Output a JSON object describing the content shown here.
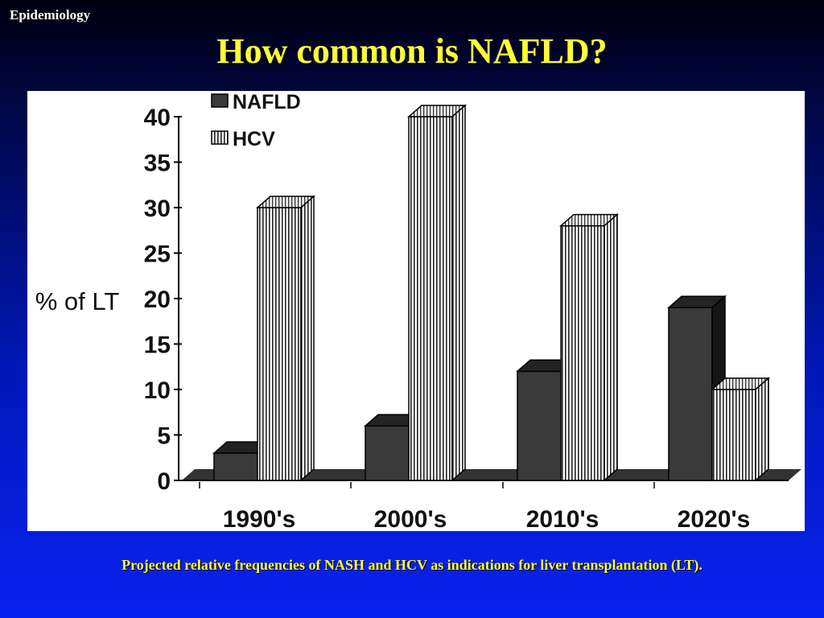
{
  "header": {
    "section": "Epidemiology",
    "title": "How common is NAFLD?"
  },
  "caption": "Projected relative frequencies of NASH and HCV as indications for liver transplantation (LT).",
  "colors": {
    "title": "#ffff33",
    "nafld": "#3a3a3a",
    "hcv": "#ffffff"
  },
  "chart_data": {
    "type": "bar",
    "title": "",
    "xlabel": "",
    "ylabel": "% of LT",
    "ylim": [
      0,
      40
    ],
    "yticks": [
      0,
      5,
      10,
      15,
      20,
      25,
      30,
      35,
      40
    ],
    "categories": [
      "1990's",
      "2000's",
      "2010's",
      "2020's"
    ],
    "series": [
      {
        "name": "NAFLD",
        "values": [
          3,
          6,
          12,
          19
        ],
        "style": "solid-dark"
      },
      {
        "name": "HCV",
        "values": [
          30,
          40,
          28,
          10
        ],
        "style": "vertical-stripes"
      }
    ],
    "legend": "top-left",
    "grid": false,
    "three_d": true
  }
}
